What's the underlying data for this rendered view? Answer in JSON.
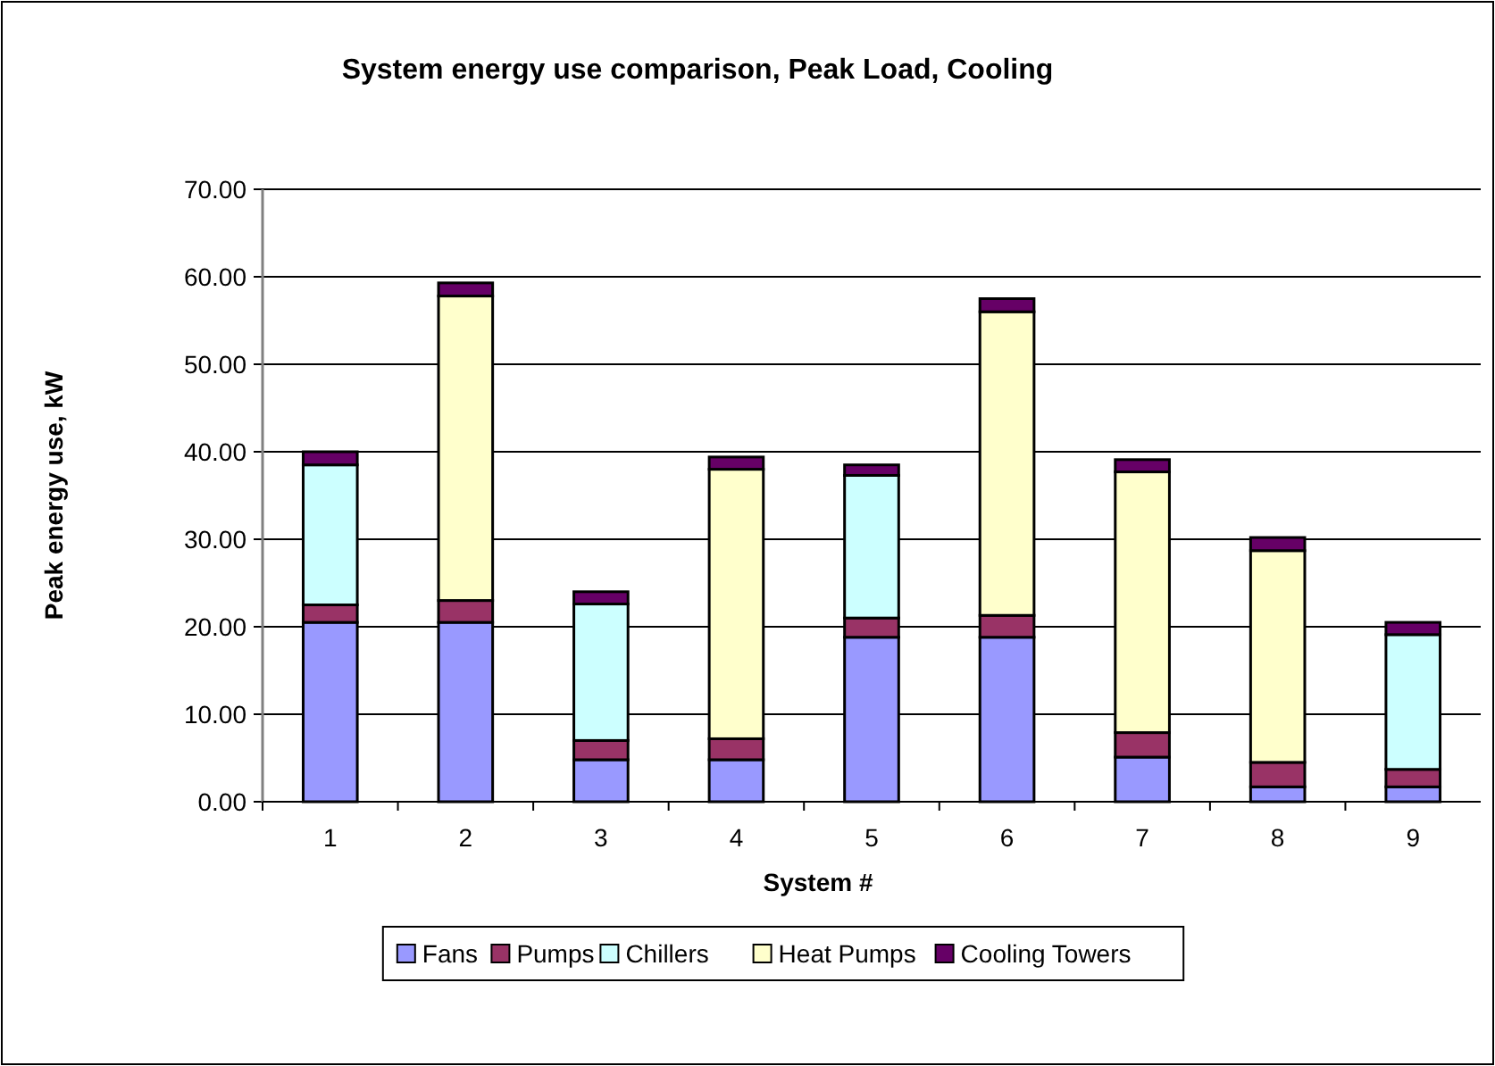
{
  "chart_data": {
    "type": "bar",
    "title": "System energy use comparison, Peak Load, Cooling",
    "xlabel": "System #",
    "ylabel": "Peak energy use, kW",
    "categories": [
      "1",
      "2",
      "3",
      "4",
      "5",
      "6",
      "7",
      "8",
      "9"
    ],
    "stacked": true,
    "ylim": [
      0,
      70
    ],
    "yticks": [
      {
        "value": 0,
        "label": "0.00"
      },
      {
        "value": 10,
        "label": "10.00"
      },
      {
        "value": 20,
        "label": "20.00"
      },
      {
        "value": 30,
        "label": "30.00"
      },
      {
        "value": 40,
        "label": "40.00"
      },
      {
        "value": 50,
        "label": "50.00"
      },
      {
        "value": 60,
        "label": "60.00"
      },
      {
        "value": 70,
        "label": "70.00"
      }
    ],
    "grid": "y",
    "legend": "bottom",
    "series": [
      {
        "name": "Fans",
        "color": "#9999ff",
        "values": [
          20.5,
          20.5,
          4.8,
          4.8,
          18.8,
          18.8,
          5.1,
          1.7,
          1.7
        ]
      },
      {
        "name": "Pumps",
        "color": "#993366",
        "values": [
          2.0,
          2.5,
          2.2,
          2.4,
          2.2,
          2.5,
          2.8,
          2.8,
          2.0
        ]
      },
      {
        "name": "Chillers",
        "color": "#ccffff",
        "values": [
          16.0,
          null,
          15.6,
          null,
          16.3,
          null,
          null,
          null,
          15.4
        ]
      },
      {
        "name": "Heat Pumps",
        "color": "#ffffcc",
        "values": [
          null,
          34.8,
          null,
          30.8,
          null,
          34.7,
          29.8,
          24.2,
          null
        ]
      },
      {
        "name": "Cooling Towers",
        "color": "#660066",
        "values": [
          1.5,
          1.5,
          1.4,
          1.4,
          1.2,
          1.5,
          1.4,
          1.5,
          1.4
        ]
      }
    ]
  }
}
